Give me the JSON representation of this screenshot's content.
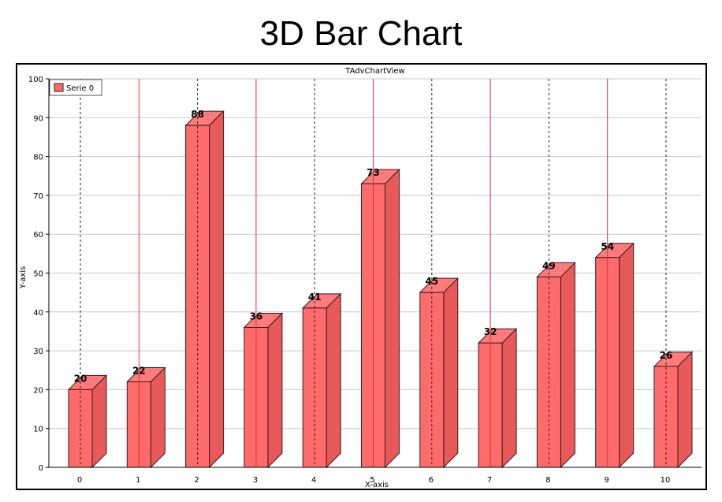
{
  "header": {
    "title": "3D Bar Chart"
  },
  "chart_data": {
    "type": "bar",
    "title": "TAdvChartView",
    "xlabel": "X-axis",
    "ylabel": "Y-axis",
    "categories": [
      "0",
      "1",
      "2",
      "3",
      "4",
      "5",
      "6",
      "7",
      "8",
      "9",
      "10"
    ],
    "series": [
      {
        "name": "Serie 0",
        "values": [
          20,
          22,
          88,
          36,
          41,
          73,
          45,
          32,
          49,
          54,
          26
        ]
      }
    ],
    "ylim": [
      0,
      100
    ],
    "yticks": [
      0,
      10,
      20,
      30,
      40,
      50,
      60,
      70,
      80,
      90,
      100
    ],
    "grid": true,
    "legend_position": "top-left",
    "bar_style": "3d",
    "colors": {
      "bar_front": "#ff6b6b",
      "bar_top": "#ff7a7a",
      "bar_side": "#e85a5a",
      "bar_edge": "#3a1a1a",
      "gridline": "#c8c8c8",
      "marker_line_red": "#e03030",
      "marker_line_dark": "#222222"
    }
  }
}
